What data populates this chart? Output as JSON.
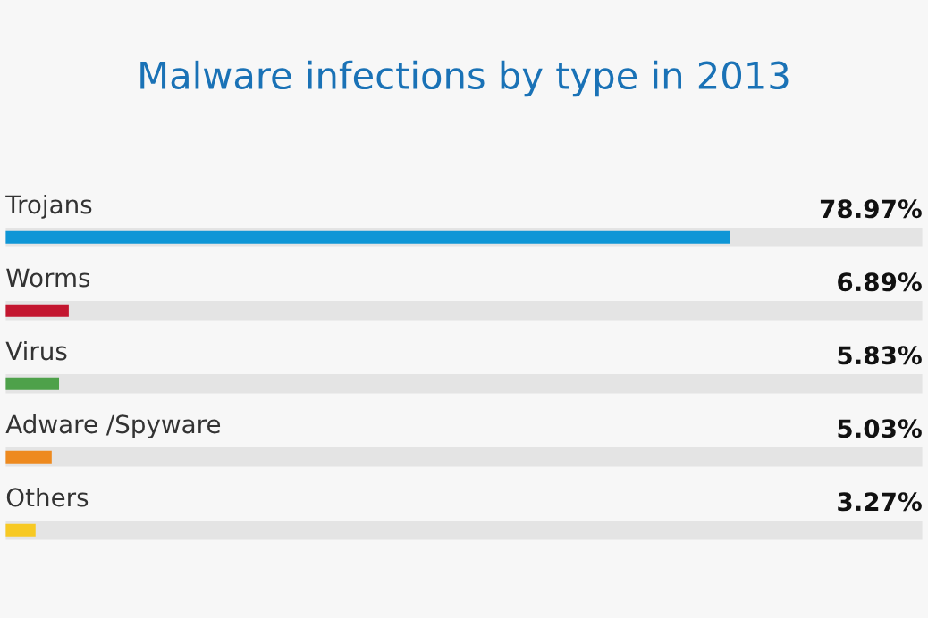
{
  "chart_data": {
    "type": "bar",
    "orientation": "horizontal",
    "title": "Malware infections by type in 2013",
    "categories": [
      "Trojans",
      "Worms",
      "Virus",
      "Adware /Spyware",
      "Others"
    ],
    "values": [
      78.97,
      6.89,
      5.83,
      5.03,
      3.27
    ],
    "colors": [
      "#0e96d6",
      "#c3162f",
      "#4ea14a",
      "#ee8a1f",
      "#f7c923"
    ],
    "value_labels": [
      "78.97%",
      "6.89%",
      "5.83%",
      "5.03%",
      "3.27%"
    ],
    "xlim": [
      0,
      100
    ]
  }
}
